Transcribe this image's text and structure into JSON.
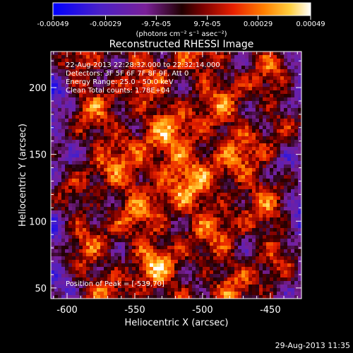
{
  "figure": {
    "colorbar": {
      "ticks": [
        "-0.00049",
        "-0.00029",
        "-9.7e-05",
        "9.7e-05",
        "0.00029",
        "0.00049"
      ],
      "unit_label": "(photons cm⁻² s⁻¹ asec⁻²)",
      "range": [
        -0.00049,
        0.00049
      ]
    },
    "overlay": {
      "time_range": "22-Aug-2013 22:28:32.000 to 22:32:14.000",
      "detectors": "Detectors: 3F 5F 6F 7F 8F 9F, Att 0",
      "energy": "Energy Range: 25.0 - 50.0 keV",
      "algorithm": "Clean    Total counts: 1.78E+04",
      "peak": "Position of Peak = [-539,70]"
    },
    "timestamp": "29-Aug-2013 11:35"
  },
  "chart_data": {
    "type": "heatmap",
    "title": "Reconstructed RHESSI Image",
    "xlabel": "Heliocentric X (arcsec)",
    "ylabel": "Heliocentric Y (arcsec)",
    "xlim": [
      -612,
      -427
    ],
    "ylim": [
      42,
      227
    ],
    "xticks": [
      -600,
      -550,
      -500,
      -450
    ],
    "yticks": [
      50,
      100,
      150,
      200
    ],
    "colormap": "rainbow-hot",
    "peak_position": [
      -539,
      70
    ]
  }
}
